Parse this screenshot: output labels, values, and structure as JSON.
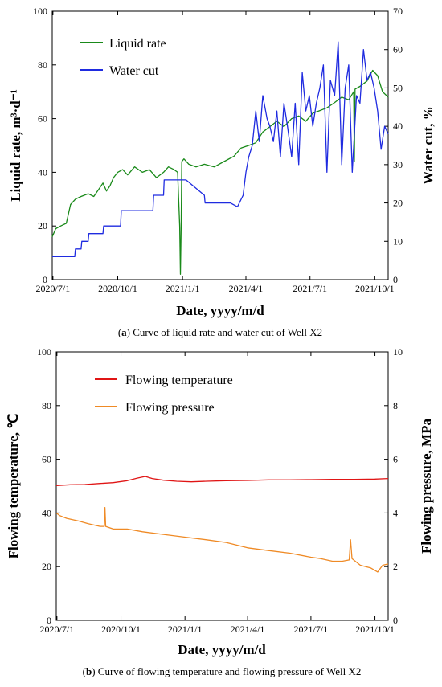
{
  "chart_data": [
    {
      "type": "line",
      "caption_label": "a",
      "caption_text": "Curve of liquid rate and water cut of Well X2",
      "xlabel": "Date, yyyy/m/d",
      "ylabel_left": "Liquid rate, m³·d⁻¹",
      "ylabel_right": "Water cut, %",
      "xlim": [
        "2020/6/30",
        "2021/10/20"
      ],
      "x_ticks": [
        "2020/7/1",
        "2020/10/1",
        "2021/1/1",
        "2021/4/1",
        "2021/7/1",
        "2021/10/1"
      ],
      "ylim_left": [
        0,
        100
      ],
      "yticks_left": [
        0,
        20,
        40,
        60,
        80,
        100
      ],
      "ylim_right": [
        0,
        70
      ],
      "yticks_right": [
        0,
        10,
        20,
        30,
        40,
        50,
        60,
        70
      ],
      "legend_position": "top-left",
      "series": [
        {
          "name": "Liquid rate",
          "axis": "left",
          "color": "#1a8a1a",
          "x": [
            "2020/6/30",
            "2020/7/5",
            "2020/7/12",
            "2020/7/20",
            "2020/7/26",
            "2020/8/2",
            "2020/8/10",
            "2020/8/20",
            "2020/8/28",
            "2020/9/5",
            "2020/9/10",
            "2020/9/15",
            "2020/9/20",
            "2020/9/25",
            "2020/10/1",
            "2020/10/8",
            "2020/10/15",
            "2020/10/25",
            "2020/11/5",
            "2020/11/15",
            "2020/11/25",
            "2020/12/5",
            "2020/12/12",
            "2020/12/20",
            "2020/12/25",
            "2020/12/28",
            "2020/12/29",
            "2020/12/30",
            "2020/12/31",
            "2021/1/3",
            "2021/1/10",
            "2021/1/20",
            "2021/2/1",
            "2021/2/15",
            "2021/3/1",
            "2021/3/15",
            "2021/3/25",
            "2021/4/5",
            "2021/4/15",
            "2021/4/25",
            "2021/5/5",
            "2021/5/15",
            "2021/5/25",
            "2021/6/5",
            "2021/6/15",
            "2021/6/25",
            "2021/7/5",
            "2021/7/15",
            "2021/7/25",
            "2021/8/5",
            "2021/8/15",
            "2021/8/25",
            "2021/9/1",
            "2021/9/2",
            "2021/9/3",
            "2021/9/10",
            "2021/9/20",
            "2021/9/28",
            "2021/10/5",
            "2021/10/12",
            "2021/10/20"
          ],
          "values": [
            16,
            19,
            20,
            21,
            28,
            30,
            31,
            32,
            31,
            34,
            36,
            33,
            35,
            38,
            40,
            41,
            39,
            42,
            40,
            41,
            38,
            40,
            42,
            41,
            40,
            20,
            2,
            20,
            44,
            45,
            43,
            42,
            43,
            42,
            44,
            46,
            49,
            50,
            51,
            55,
            57,
            59,
            57,
            60,
            61,
            59,
            62,
            63,
            64,
            66,
            68,
            67,
            70,
            44,
            71,
            72,
            74,
            78,
            76,
            70,
            68
          ]
        },
        {
          "name": "Water cut",
          "axis": "right",
          "color": "#1f2be0",
          "x": [
            "2020/6/30",
            "2020/8/1",
            "2020/8/2",
            "2020/8/10",
            "2020/8/11",
            "2020/8/20",
            "2020/8/21",
            "2020/9/10",
            "2020/9/11",
            "2020/10/5",
            "2020/10/6",
            "2020/11/20",
            "2020/11/21",
            "2020/12/5",
            "2020/12/6",
            "2021/1/5",
            "2021/1/6",
            "2021/2/1",
            "2021/2/2",
            "2021/2/20",
            "2021/3/10",
            "2021/3/20",
            "2021/3/28",
            "2021/4/1",
            "2021/4/5",
            "2021/4/10",
            "2021/4/15",
            "2021/4/20",
            "2021/4/25",
            "2021/5/1",
            "2021/5/5",
            "2021/5/10",
            "2021/5/15",
            "2021/5/20",
            "2021/5/25",
            "2021/5/30",
            "2021/6/5",
            "2021/6/10",
            "2021/6/15",
            "2021/6/20",
            "2021/6/25",
            "2021/6/30",
            "2021/7/5",
            "2021/7/10",
            "2021/7/15",
            "2021/7/20",
            "2021/7/25",
            "2021/7/30",
            "2021/8/5",
            "2021/8/10",
            "2021/8/15",
            "2021/8/20",
            "2021/8/25",
            "2021/8/30",
            "2021/9/5",
            "2021/9/10",
            "2021/9/15",
            "2021/9/20",
            "2021/9/25",
            "2021/9/30",
            "2021/10/5",
            "2021/10/10",
            "2021/10/15",
            "2021/10/20"
          ],
          "values": [
            6,
            6,
            8,
            8,
            10,
            10,
            12,
            12,
            14,
            14,
            18,
            18,
            22,
            22,
            26,
            26,
            26,
            22,
            20,
            20,
            20,
            19,
            22,
            28,
            32,
            35,
            44,
            36,
            48,
            42,
            40,
            36,
            44,
            32,
            46,
            40,
            32,
            46,
            30,
            54,
            44,
            48,
            40,
            46,
            50,
            56,
            28,
            52,
            48,
            62,
            30,
            50,
            56,
            28,
            48,
            46,
            60,
            52,
            54,
            50,
            44,
            34,
            40,
            38
          ]
        }
      ]
    },
    {
      "type": "line",
      "caption_label": "b",
      "caption_text": "Curve of flowing temperature and flowing pressure of Well X2",
      "xlabel": "Date, yyyy/m/d",
      "ylabel_left": "Flowing temperature, ℃",
      "ylabel_right": "Flowing pressure, MPa",
      "xlim": [
        "2020/6/30",
        "2021/10/20"
      ],
      "x_ticks": [
        "2020/7/1",
        "2020/10/1",
        "2021/1/1",
        "2021/4/1",
        "2021/7/1",
        "2021/10/1"
      ],
      "ylim_left": [
        0,
        100
      ],
      "yticks_left": [
        0,
        20,
        40,
        60,
        80,
        100
      ],
      "ylim_right": [
        0,
        10
      ],
      "yticks_right": [
        0,
        2,
        4,
        6,
        8,
        10
      ],
      "legend_position": "top-left",
      "series": [
        {
          "name": "Flowing temperature",
          "axis": "left",
          "color": "#e01515",
          "x": [
            "2020/6/30",
            "2020/7/20",
            "2020/8/10",
            "2020/9/1",
            "2020/9/20",
            "2020/10/10",
            "2020/10/25",
            "2020/11/5",
            "2020/11/15",
            "2020/12/1",
            "2020/12/20",
            "2021/1/10",
            "2021/2/1",
            "2021/3/1",
            "2021/4/1",
            "2021/5/1",
            "2021/6/1",
            "2021/7/1",
            "2021/8/1",
            "2021/9/1",
            "2021/10/1",
            "2021/10/20"
          ],
          "values": [
            50.2,
            50.5,
            50.6,
            51,
            51.3,
            52,
            53,
            53.6,
            52.8,
            52.2,
            51.8,
            51.6,
            51.8,
            52,
            52.1,
            52.3,
            52.3,
            52.4,
            52.5,
            52.5,
            52.6,
            52.8
          ]
        },
        {
          "name": "Flowing pressure",
          "axis": "right",
          "color": "#ef8a25",
          "x": [
            "2020/6/30",
            "2020/7/5",
            "2020/7/15",
            "2020/8/1",
            "2020/8/15",
            "2020/9/1",
            "2020/9/7",
            "2020/9/8",
            "2020/9/9",
            "2020/9/20",
            "2020/10/10",
            "2020/11/1",
            "2020/12/1",
            "2021/1/1",
            "2021/2/1",
            "2021/3/1",
            "2021/4/1",
            "2021/5/1",
            "2021/6/1",
            "2021/7/1",
            "2021/7/15",
            "2021/8/1",
            "2021/8/15",
            "2021/8/25",
            "2021/8/27",
            "2021/8/29",
            "2021/9/10",
            "2021/9/25",
            "2021/10/5",
            "2021/10/12",
            "2021/10/20"
          ],
          "values": [
            4.0,
            3.9,
            3.8,
            3.7,
            3.6,
            3.5,
            3.5,
            4.2,
            3.5,
            3.4,
            3.4,
            3.3,
            3.2,
            3.1,
            3.0,
            2.9,
            2.7,
            2.6,
            2.5,
            2.35,
            2.3,
            2.2,
            2.2,
            2.25,
            3.0,
            2.3,
            2.05,
            1.95,
            1.8,
            2.05,
            2.1
          ]
        }
      ]
    }
  ]
}
